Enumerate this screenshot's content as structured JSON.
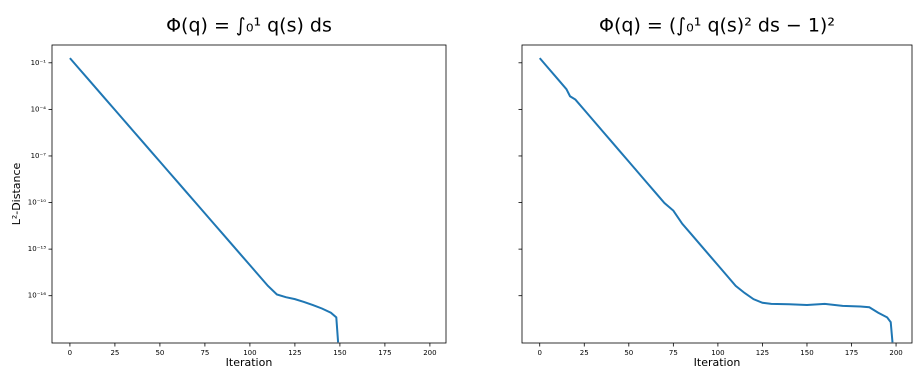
{
  "chart_data": [
    {
      "type": "line",
      "title": "Φ(q) = ∫₀¹ q(s) ds",
      "x_label": "Iteration",
      "y_label": "L²-Distance",
      "log_y": true,
      "color": "#1f77b4",
      "x": [
        0,
        5,
        10,
        15,
        20,
        25,
        30,
        35,
        40,
        45,
        50,
        55,
        60,
        65,
        70,
        75,
        80,
        85,
        90,
        95,
        100,
        105,
        110,
        115,
        120,
        125,
        130,
        135,
        140,
        145,
        148,
        149
      ],
      "values": [
        0.2,
        0.043,
        0.0093,
        0.002,
        0.00043,
        9.3e-05,
        2e-05,
        4.3e-06,
        9.3e-07,
        2e-07,
        4.3e-08,
        9.3e-09,
        2e-09,
        4.3e-10,
        9.3e-11,
        2e-11,
        4.3e-12,
        9.3e-13,
        2e-13,
        4.3e-14,
        9.3e-15,
        2e-15,
        4.3e-16,
        1.2e-16,
        8e-17,
        6e-17,
        4e-17,
        2.5e-17,
        1.5e-17,
        8e-18,
        4e-18,
        1e-19
      ],
      "xlim": [
        -9.95,
        208.95
      ],
      "xticks": [
        0,
        25,
        50,
        75,
        100,
        125,
        150,
        175,
        200
      ],
      "ylim": [
        9e-20,
        1.4
      ],
      "yticks": [
        {
          "value": 0.1,
          "label": "10⁻¹"
        },
        {
          "value": 0.0001,
          "label": "10⁻⁴"
        },
        {
          "value": 1e-07,
          "label": "10⁻⁷"
        },
        {
          "value": 1e-10,
          "label": "10⁻¹⁰"
        },
        {
          "value": 1e-13,
          "label": "10⁻¹³"
        },
        {
          "value": 1e-16,
          "label": "10⁻¹⁶"
        }
      ]
    },
    {
      "type": "line",
      "title": "Φ(q) = (∫₀¹ q(s)² ds − 1)²",
      "x_label": "Iteration",
      "log_y": true,
      "color": "#1f77b4",
      "x": [
        0,
        5,
        10,
        15,
        17,
        20,
        25,
        30,
        35,
        40,
        45,
        50,
        55,
        60,
        65,
        70,
        75,
        80,
        85,
        90,
        95,
        100,
        105,
        110,
        115,
        120,
        125,
        130,
        140,
        150,
        160,
        170,
        180,
        185,
        190,
        195,
        197,
        198
      ],
      "values": [
        0.2,
        0.043,
        0.0093,
        0.002,
        0.0007,
        0.00043,
        9.3e-05,
        2e-05,
        4.3e-06,
        9.3e-07,
        2e-07,
        4.3e-08,
        9.3e-09,
        2e-09,
        4.3e-10,
        9.3e-11,
        3e-11,
        4.3e-12,
        9.3e-13,
        2e-13,
        4.3e-14,
        9.3e-15,
        2e-15,
        4.3e-16,
        1.5e-16,
        6e-17,
        3.5e-17,
        3e-17,
        2.8e-17,
        2.5e-17,
        3e-17,
        2.2e-17,
        2e-17,
        1.8e-17,
        8e-18,
        4e-18,
        2e-18,
        1e-19
      ],
      "xlim": [
        -9.95,
        208.95
      ],
      "xticks": [
        0,
        25,
        50,
        75,
        100,
        125,
        150,
        175,
        200
      ],
      "ylim": [
        9e-20,
        1.4
      ],
      "yticks": [
        0.1,
        0.0001,
        1e-07,
        1e-10,
        1e-13,
        1e-16
      ]
    }
  ]
}
